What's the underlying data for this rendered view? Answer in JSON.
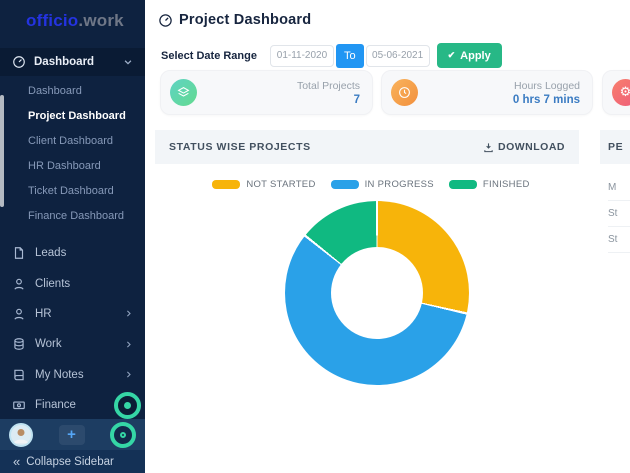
{
  "brand": {
    "primary": "officio",
    "secondary": ".work"
  },
  "sidebar": {
    "group_label": "Dashboard",
    "dashboard_items": [
      {
        "label": "Dashboard",
        "active": false
      },
      {
        "label": "Project Dashboard",
        "active": true
      },
      {
        "label": "Client Dashboard",
        "active": false
      },
      {
        "label": "HR Dashboard",
        "active": false
      },
      {
        "label": "Ticket Dashboard",
        "active": false
      },
      {
        "label": "Finance Dashboard",
        "active": false
      }
    ],
    "menu_items": [
      {
        "label": "Leads",
        "icon": "file-icon",
        "has_submenu": false
      },
      {
        "label": "Clients",
        "icon": "user-icon",
        "has_submenu": false
      },
      {
        "label": "HR",
        "icon": "user-icon",
        "has_submenu": true
      },
      {
        "label": "Work",
        "icon": "database-icon",
        "has_submenu": true
      },
      {
        "label": "My Notes",
        "icon": "book-icon",
        "has_submenu": true
      },
      {
        "label": "Finance",
        "icon": "money-icon",
        "has_submenu": false
      }
    ],
    "collapse_label": "Collapse Sidebar"
  },
  "header": {
    "title": "Project Dashboard"
  },
  "filters": {
    "label": "Select Date Range",
    "start_date": "01-11-2020",
    "to_label": "To",
    "end_date": "05-06-2021",
    "apply_label": "Apply",
    "apply_check": "✔"
  },
  "stat_cards": [
    {
      "label": "Total Projects",
      "value": "7",
      "icon": "layers-icon"
    },
    {
      "label": "Hours Logged",
      "value": "0 hrs 7 mins",
      "icon": "clock-icon"
    },
    {
      "label": "",
      "value": "",
      "icon": "gear-icon",
      "note": "cut off at viewport edge"
    }
  ],
  "status_panel": {
    "title": "STATUS WISE PROJECTS",
    "download_label": "DOWNLOAD"
  },
  "right_panel": {
    "title_fragment": "PE",
    "rows": [
      "M",
      "St",
      "St"
    ]
  },
  "chart_data": {
    "type": "pie",
    "donut": true,
    "title": "STATUS WISE PROJECTS",
    "categories": [
      "NOT STARTED",
      "IN PROGRESS",
      "FINISHED"
    ],
    "values": [
      2,
      4,
      1
    ],
    "total": 7,
    "colors": [
      "#F7B40A",
      "#2AA1E8",
      "#10B981"
    ],
    "legend_position": "top",
    "start_angle_deg": 0
  },
  "colors": {
    "sidebar_bg": "#0E2240",
    "brand_blue": "#2433E0",
    "accent_blue": "#2196F3",
    "apply_green": "#27B886",
    "value_blue": "#3A7BC2",
    "timer_green": "#35D6A6",
    "panel_header_bg": "#F2F5F8"
  },
  "misc": {
    "plus_label": "+",
    "collapse_chevrons": "«"
  }
}
